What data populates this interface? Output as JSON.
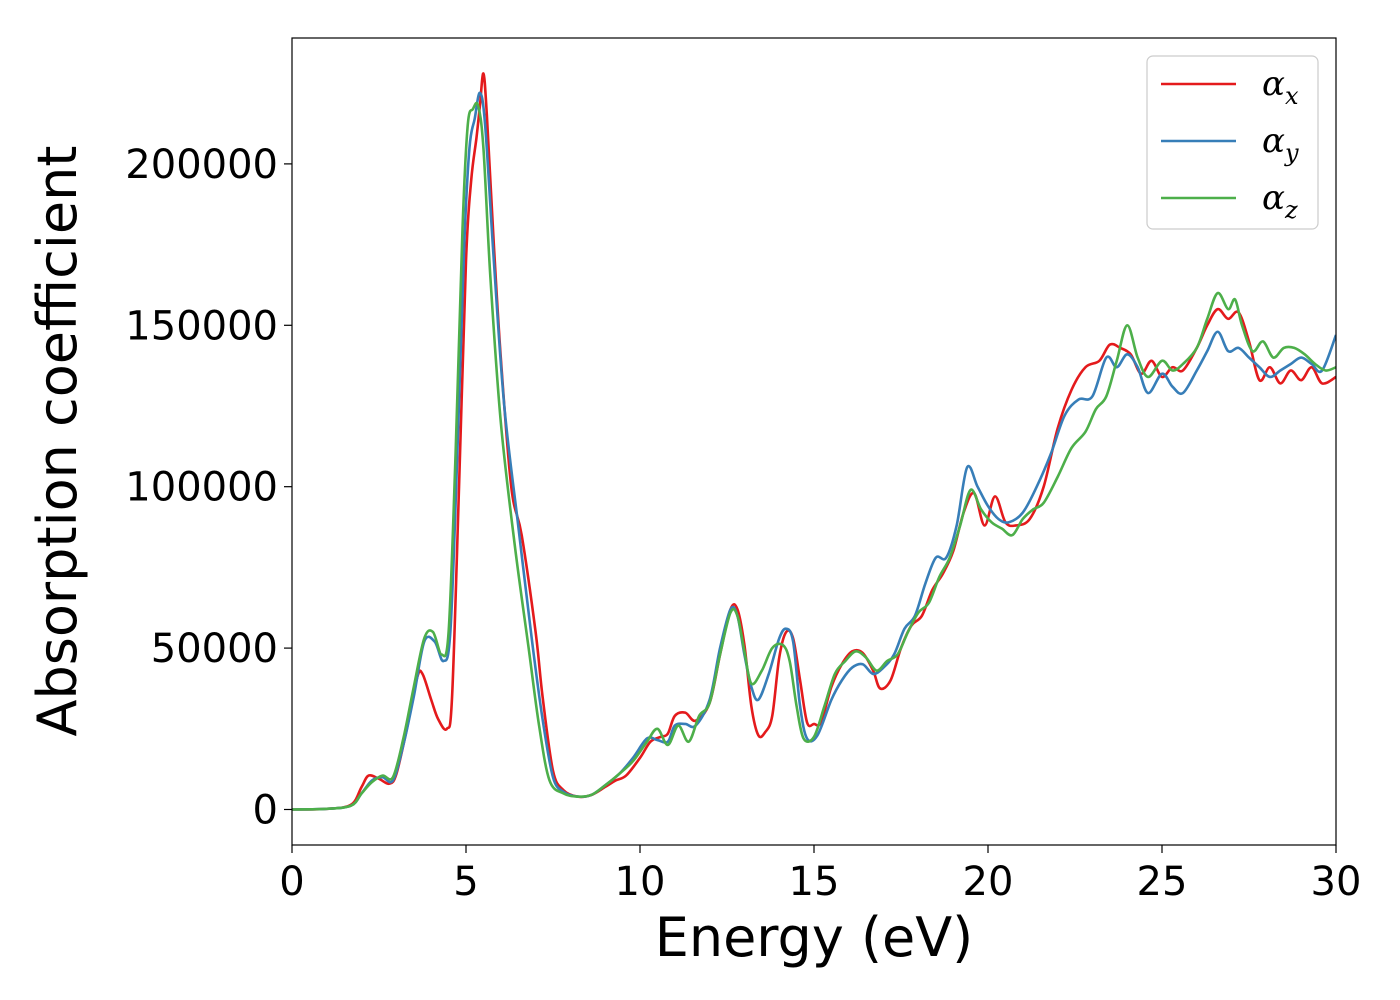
{
  "chart_data": {
    "type": "line",
    "title": "",
    "xlabel": "Energy (eV)",
    "ylabel": "Absorption coefficient",
    "xlim": [
      0,
      30
    ],
    "ylim": [
      -11000,
      239000
    ],
    "xticks": [
      0,
      5,
      10,
      15,
      20,
      25,
      30
    ],
    "xtick_labels": [
      "0",
      "5",
      "10",
      "15",
      "20",
      "25",
      "30"
    ],
    "yticks": [
      0,
      50000,
      100000,
      150000,
      200000
    ],
    "ytick_labels": [
      "0",
      "50000",
      "100000",
      "150000",
      "200000"
    ],
    "grid": false,
    "legend_position": "top-right",
    "series": [
      {
        "name": "α_x",
        "label_main": "α",
        "label_sub": "x",
        "color": "#e41a1c",
        "points": [
          [
            0,
            0
          ],
          [
            1,
            200
          ],
          [
            1.7,
            1500
          ],
          [
            2.0,
            7000
          ],
          [
            2.2,
            10500
          ],
          [
            2.5,
            9500
          ],
          [
            2.8,
            8000
          ],
          [
            3.0,
            11000
          ],
          [
            3.3,
            25000
          ],
          [
            3.6,
            41000
          ],
          [
            3.75,
            42000
          ],
          [
            4.0,
            34000
          ],
          [
            4.2,
            28000
          ],
          [
            4.45,
            25000
          ],
          [
            4.6,
            35000
          ],
          [
            4.8,
            100000
          ],
          [
            5.0,
            170000
          ],
          [
            5.15,
            195000
          ],
          [
            5.3,
            208000
          ],
          [
            5.4,
            218000
          ],
          [
            5.5,
            228000
          ],
          [
            5.6,
            215000
          ],
          [
            5.8,
            175000
          ],
          [
            6.0,
            140000
          ],
          [
            6.3,
            100000
          ],
          [
            6.6,
            85000
          ],
          [
            7.0,
            55000
          ],
          [
            7.2,
            35000
          ],
          [
            7.5,
            12000
          ],
          [
            7.8,
            6000
          ],
          [
            8.2,
            4000
          ],
          [
            8.6,
            4500
          ],
          [
            9.0,
            7000
          ],
          [
            9.3,
            9000
          ],
          [
            9.6,
            10500
          ],
          [
            10.0,
            16000
          ],
          [
            10.3,
            21000
          ],
          [
            10.6,
            22500
          ],
          [
            10.8,
            23500
          ],
          [
            11.0,
            29000
          ],
          [
            11.3,
            30000
          ],
          [
            11.6,
            27500
          ],
          [
            12.0,
            33000
          ],
          [
            12.3,
            48000
          ],
          [
            12.6,
            62000
          ],
          [
            12.8,
            62000
          ],
          [
            13.0,
            51000
          ],
          [
            13.2,
            32000
          ],
          [
            13.4,
            23000
          ],
          [
            13.6,
            24000
          ],
          [
            13.8,
            29000
          ],
          [
            14.0,
            47000
          ],
          [
            14.2,
            55000
          ],
          [
            14.4,
            53000
          ],
          [
            14.6,
            40000
          ],
          [
            14.8,
            27000
          ],
          [
            15.0,
            26500
          ],
          [
            15.2,
            27000
          ],
          [
            15.5,
            38000
          ],
          [
            15.8,
            45000
          ],
          [
            16.1,
            49000
          ],
          [
            16.4,
            48500
          ],
          [
            16.7,
            43000
          ],
          [
            16.9,
            37500
          ],
          [
            17.2,
            40000
          ],
          [
            17.5,
            50000
          ],
          [
            17.8,
            57000
          ],
          [
            18.1,
            60000
          ],
          [
            18.4,
            68000
          ],
          [
            18.7,
            73000
          ],
          [
            19.0,
            80000
          ],
          [
            19.3,
            92000
          ],
          [
            19.6,
            98000
          ],
          [
            19.9,
            88000
          ],
          [
            20.2,
            97000
          ],
          [
            20.5,
            89000
          ],
          [
            20.8,
            88000
          ],
          [
            21.2,
            90000
          ],
          [
            21.6,
            100000
          ],
          [
            22.0,
            118000
          ],
          [
            22.4,
            130000
          ],
          [
            22.8,
            137000
          ],
          [
            23.2,
            139000
          ],
          [
            23.5,
            144000
          ],
          [
            23.8,
            143000
          ],
          [
            24.1,
            141000
          ],
          [
            24.4,
            135000
          ],
          [
            24.7,
            139000
          ],
          [
            25.0,
            134000
          ],
          [
            25.3,
            137000
          ],
          [
            25.6,
            136000
          ],
          [
            26.0,
            143000
          ],
          [
            26.3,
            150000
          ],
          [
            26.6,
            155000
          ],
          [
            26.9,
            152000
          ],
          [
            27.2,
            154000
          ],
          [
            27.5,
            145000
          ],
          [
            27.8,
            133000
          ],
          [
            28.1,
            137000
          ],
          [
            28.4,
            132000
          ],
          [
            28.7,
            136000
          ],
          [
            29.0,
            133000
          ],
          [
            29.3,
            137000
          ],
          [
            29.6,
            132000
          ],
          [
            30.0,
            134000
          ]
        ]
      },
      {
        "name": "α_y",
        "label_main": "α",
        "label_sub": "y",
        "color": "#377eb8",
        "points": [
          [
            0,
            0
          ],
          [
            1,
            200
          ],
          [
            1.7,
            1200
          ],
          [
            2.0,
            5000
          ],
          [
            2.3,
            9000
          ],
          [
            2.6,
            10000
          ],
          [
            2.9,
            9000
          ],
          [
            3.2,
            20000
          ],
          [
            3.5,
            35000
          ],
          [
            3.8,
            52000
          ],
          [
            4.1,
            52000
          ],
          [
            4.35,
            46000
          ],
          [
            4.55,
            55000
          ],
          [
            4.75,
            110000
          ],
          [
            4.95,
            175000
          ],
          [
            5.1,
            205000
          ],
          [
            5.25,
            214000
          ],
          [
            5.4,
            222000
          ],
          [
            5.55,
            212000
          ],
          [
            5.8,
            170000
          ],
          [
            6.1,
            125000
          ],
          [
            6.5,
            88000
          ],
          [
            6.9,
            52000
          ],
          [
            7.2,
            28000
          ],
          [
            7.5,
            10000
          ],
          [
            7.8,
            5500
          ],
          [
            8.2,
            4000
          ],
          [
            8.6,
            4500
          ],
          [
            9.0,
            7500
          ],
          [
            9.4,
            11000
          ],
          [
            9.8,
            16000
          ],
          [
            10.2,
            22000
          ],
          [
            10.5,
            21500
          ],
          [
            10.8,
            21000
          ],
          [
            11.0,
            26000
          ],
          [
            11.3,
            26500
          ],
          [
            11.6,
            26000
          ],
          [
            12.0,
            34000
          ],
          [
            12.3,
            50000
          ],
          [
            12.6,
            62000
          ],
          [
            12.8,
            60000
          ],
          [
            13.0,
            48000
          ],
          [
            13.2,
            38000
          ],
          [
            13.4,
            34000
          ],
          [
            13.7,
            42000
          ],
          [
            14.0,
            53000
          ],
          [
            14.2,
            56000
          ],
          [
            14.4,
            52000
          ],
          [
            14.6,
            32000
          ],
          [
            14.8,
            22000
          ],
          [
            15.1,
            23000
          ],
          [
            15.5,
            34000
          ],
          [
            15.8,
            40000
          ],
          [
            16.1,
            44000
          ],
          [
            16.4,
            45000
          ],
          [
            16.7,
            42000
          ],
          [
            17.0,
            44000
          ],
          [
            17.3,
            48000
          ],
          [
            17.6,
            56000
          ],
          [
            17.9,
            60000
          ],
          [
            18.2,
            70000
          ],
          [
            18.5,
            78000
          ],
          [
            18.8,
            78000
          ],
          [
            19.1,
            88000
          ],
          [
            19.4,
            106000
          ],
          [
            19.7,
            100000
          ],
          [
            20.0,
            94000
          ],
          [
            20.3,
            90000
          ],
          [
            20.6,
            89000
          ],
          [
            21.0,
            92000
          ],
          [
            21.4,
            100000
          ],
          [
            21.8,
            110000
          ],
          [
            22.2,
            122000
          ],
          [
            22.6,
            127000
          ],
          [
            23.0,
            128000
          ],
          [
            23.4,
            140000
          ],
          [
            23.7,
            137000
          ],
          [
            24.0,
            141000
          ],
          [
            24.3,
            137000
          ],
          [
            24.6,
            129000
          ],
          [
            25.0,
            135000
          ],
          [
            25.3,
            131000
          ],
          [
            25.6,
            129000
          ],
          [
            26.0,
            136000
          ],
          [
            26.3,
            142000
          ],
          [
            26.6,
            148000
          ],
          [
            26.9,
            142000
          ],
          [
            27.2,
            143000
          ],
          [
            27.5,
            140000
          ],
          [
            27.8,
            137000
          ],
          [
            28.1,
            134000
          ],
          [
            28.4,
            136000
          ],
          [
            28.7,
            138000
          ],
          [
            29.0,
            140000
          ],
          [
            29.3,
            138000
          ],
          [
            29.6,
            136000
          ],
          [
            30.0,
            147000
          ]
        ]
      },
      {
        "name": "α_z",
        "label_main": "α",
        "label_sub": "z",
        "color": "#4daf4a",
        "points": [
          [
            0,
            0
          ],
          [
            1,
            200
          ],
          [
            1.7,
            1200
          ],
          [
            2.0,
            5000
          ],
          [
            2.3,
            8500
          ],
          [
            2.6,
            10500
          ],
          [
            2.9,
            10000
          ],
          [
            3.2,
            22000
          ],
          [
            3.5,
            38000
          ],
          [
            3.8,
            53000
          ],
          [
            4.05,
            55000
          ],
          [
            4.3,
            48000
          ],
          [
            4.5,
            55000
          ],
          [
            4.7,
            110000
          ],
          [
            4.9,
            180000
          ],
          [
            5.05,
            212000
          ],
          [
            5.2,
            217000
          ],
          [
            5.35,
            218000
          ],
          [
            5.5,
            205000
          ],
          [
            5.7,
            165000
          ],
          [
            6.0,
            120000
          ],
          [
            6.4,
            82000
          ],
          [
            6.8,
            50000
          ],
          [
            7.1,
            26000
          ],
          [
            7.4,
            9000
          ],
          [
            7.8,
            5000
          ],
          [
            8.2,
            4000
          ],
          [
            8.6,
            4500
          ],
          [
            9.0,
            7500
          ],
          [
            9.4,
            11000
          ],
          [
            9.8,
            15000
          ],
          [
            10.2,
            21000
          ],
          [
            10.5,
            25000
          ],
          [
            10.8,
            20000
          ],
          [
            11.1,
            26000
          ],
          [
            11.4,
            21000
          ],
          [
            11.7,
            29000
          ],
          [
            12.0,
            33000
          ],
          [
            12.3,
            48000
          ],
          [
            12.6,
            61000
          ],
          [
            12.8,
            60000
          ],
          [
            13.0,
            49000
          ],
          [
            13.2,
            39000
          ],
          [
            13.5,
            43000
          ],
          [
            13.8,
            50000
          ],
          [
            14.1,
            51000
          ],
          [
            14.3,
            46000
          ],
          [
            14.5,
            32000
          ],
          [
            14.7,
            22000
          ],
          [
            15.0,
            22500
          ],
          [
            15.3,
            32000
          ],
          [
            15.6,
            42000
          ],
          [
            15.9,
            46000
          ],
          [
            16.2,
            49000
          ],
          [
            16.5,
            47000
          ],
          [
            16.8,
            43000
          ],
          [
            17.1,
            46000
          ],
          [
            17.4,
            48000
          ],
          [
            17.7,
            55000
          ],
          [
            18.0,
            61000
          ],
          [
            18.3,
            64000
          ],
          [
            18.6,
            72000
          ],
          [
            18.9,
            78000
          ],
          [
            19.2,
            88000
          ],
          [
            19.5,
            99000
          ],
          [
            19.8,
            93000
          ],
          [
            20.1,
            89000
          ],
          [
            20.4,
            87000
          ],
          [
            20.7,
            85000
          ],
          [
            21.0,
            90000
          ],
          [
            21.3,
            93000
          ],
          [
            21.6,
            95000
          ],
          [
            22.0,
            103000
          ],
          [
            22.4,
            112000
          ],
          [
            22.8,
            117000
          ],
          [
            23.1,
            124000
          ],
          [
            23.4,
            128000
          ],
          [
            23.7,
            139000
          ],
          [
            24.0,
            150000
          ],
          [
            24.3,
            140000
          ],
          [
            24.6,
            134000
          ],
          [
            25.0,
            139000
          ],
          [
            25.3,
            136000
          ],
          [
            25.6,
            138000
          ],
          [
            26.0,
            143000
          ],
          [
            26.3,
            152000
          ],
          [
            26.6,
            160000
          ],
          [
            26.9,
            155000
          ],
          [
            27.1,
            158000
          ],
          [
            27.3,
            150000
          ],
          [
            27.6,
            142000
          ],
          [
            27.9,
            145000
          ],
          [
            28.2,
            140000
          ],
          [
            28.5,
            143000
          ],
          [
            28.8,
            143000
          ],
          [
            29.1,
            141000
          ],
          [
            29.4,
            138000
          ],
          [
            29.7,
            136000
          ],
          [
            30.0,
            137000
          ]
        ]
      }
    ]
  }
}
